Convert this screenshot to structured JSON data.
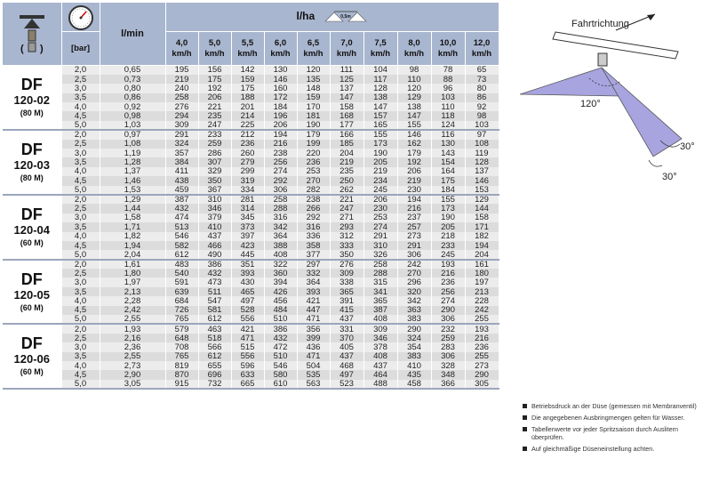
{
  "header": {
    "pressure_unit": "[bar]",
    "flow_unit": "l/min",
    "rate_unit": "l/ha",
    "spacing_label": "0,5m",
    "speed_unit": "km/h",
    "speeds": [
      "4,0",
      "5,0",
      "5,5",
      "6,0",
      "6,5",
      "7,0",
      "7,5",
      "8,0",
      "10,0",
      "12,0"
    ],
    "nozzle_icon": "nozzle-icon",
    "gauge_icon": "pressure-gauge-icon"
  },
  "groups": [
    {
      "name": "DF",
      "size": "120-02",
      "note": "(80 M)",
      "rows": [
        [
          "2,0",
          "0,65",
          "195",
          "156",
          "142",
          "130",
          "120",
          "111",
          "104",
          "98",
          "78",
          "65"
        ],
        [
          "2,5",
          "0,73",
          "219",
          "175",
          "159",
          "146",
          "135",
          "125",
          "117",
          "110",
          "88",
          "73"
        ],
        [
          "3,0",
          "0,80",
          "240",
          "192",
          "175",
          "160",
          "148",
          "137",
          "128",
          "120",
          "96",
          "80"
        ],
        [
          "3,5",
          "0,86",
          "258",
          "206",
          "188",
          "172",
          "159",
          "147",
          "138",
          "129",
          "103",
          "86"
        ],
        [
          "4,0",
          "0,92",
          "276",
          "221",
          "201",
          "184",
          "170",
          "158",
          "147",
          "138",
          "110",
          "92"
        ],
        [
          "4,5",
          "0,98",
          "294",
          "235",
          "214",
          "196",
          "181",
          "168",
          "157",
          "147",
          "118",
          "98"
        ],
        [
          "5,0",
          "1,03",
          "309",
          "247",
          "225",
          "206",
          "190",
          "177",
          "165",
          "155",
          "124",
          "103"
        ]
      ]
    },
    {
      "name": "DF",
      "size": "120-03",
      "note": "(80 M)",
      "rows": [
        [
          "2,0",
          "0,97",
          "291",
          "233",
          "212",
          "194",
          "179",
          "166",
          "155",
          "146",
          "116",
          "97"
        ],
        [
          "2,5",
          "1,08",
          "324",
          "259",
          "236",
          "216",
          "199",
          "185",
          "173",
          "162",
          "130",
          "108"
        ],
        [
          "3,0",
          "1,19",
          "357",
          "286",
          "260",
          "238",
          "220",
          "204",
          "190",
          "179",
          "143",
          "119"
        ],
        [
          "3,5",
          "1,28",
          "384",
          "307",
          "279",
          "256",
          "236",
          "219",
          "205",
          "192",
          "154",
          "128"
        ],
        [
          "4,0",
          "1,37",
          "411",
          "329",
          "299",
          "274",
          "253",
          "235",
          "219",
          "206",
          "164",
          "137"
        ],
        [
          "4,5",
          "1,46",
          "438",
          "350",
          "319",
          "292",
          "270",
          "250",
          "234",
          "219",
          "175",
          "146"
        ],
        [
          "5,0",
          "1,53",
          "459",
          "367",
          "334",
          "306",
          "282",
          "262",
          "245",
          "230",
          "184",
          "153"
        ]
      ]
    },
    {
      "name": "DF",
      "size": "120-04",
      "note": "(60 M)",
      "rows": [
        [
          "2,0",
          "1,29",
          "387",
          "310",
          "281",
          "258",
          "238",
          "221",
          "206",
          "194",
          "155",
          "129"
        ],
        [
          "2,5",
          "1,44",
          "432",
          "346",
          "314",
          "288",
          "266",
          "247",
          "230",
          "216",
          "173",
          "144"
        ],
        [
          "3,0",
          "1,58",
          "474",
          "379",
          "345",
          "316",
          "292",
          "271",
          "253",
          "237",
          "190",
          "158"
        ],
        [
          "3,5",
          "1,71",
          "513",
          "410",
          "373",
          "342",
          "316",
          "293",
          "274",
          "257",
          "205",
          "171"
        ],
        [
          "4,0",
          "1,82",
          "546",
          "437",
          "397",
          "364",
          "336",
          "312",
          "291",
          "273",
          "218",
          "182"
        ],
        [
          "4,5",
          "1,94",
          "582",
          "466",
          "423",
          "388",
          "358",
          "333",
          "310",
          "291",
          "233",
          "194"
        ],
        [
          "5,0",
          "2,04",
          "612",
          "490",
          "445",
          "408",
          "377",
          "350",
          "326",
          "306",
          "245",
          "204"
        ]
      ]
    },
    {
      "name": "DF",
      "size": "120-05",
      "note": "(60 M)",
      "rows": [
        [
          "2,0",
          "1,61",
          "483",
          "386",
          "351",
          "322",
          "297",
          "276",
          "258",
          "242",
          "193",
          "161"
        ],
        [
          "2,5",
          "1,80",
          "540",
          "432",
          "393",
          "360",
          "332",
          "309",
          "288",
          "270",
          "216",
          "180"
        ],
        [
          "3,0",
          "1,97",
          "591",
          "473",
          "430",
          "394",
          "364",
          "338",
          "315",
          "296",
          "236",
          "197"
        ],
        [
          "3,5",
          "2,13",
          "639",
          "511",
          "465",
          "426",
          "393",
          "365",
          "341",
          "320",
          "256",
          "213"
        ],
        [
          "4,0",
          "2,28",
          "684",
          "547",
          "497",
          "456",
          "421",
          "391",
          "365",
          "342",
          "274",
          "228"
        ],
        [
          "4,5",
          "2,42",
          "726",
          "581",
          "528",
          "484",
          "447",
          "415",
          "387",
          "363",
          "290",
          "242"
        ],
        [
          "5,0",
          "2,55",
          "765",
          "612",
          "556",
          "510",
          "471",
          "437",
          "408",
          "383",
          "306",
          "255"
        ]
      ]
    },
    {
      "name": "DF",
      "size": "120-06",
      "note": "(60 M)",
      "rows": [
        [
          "2,0",
          "1,93",
          "579",
          "463",
          "421",
          "386",
          "356",
          "331",
          "309",
          "290",
          "232",
          "193"
        ],
        [
          "2,5",
          "2,16",
          "648",
          "518",
          "471",
          "432",
          "399",
          "370",
          "346",
          "324",
          "259",
          "216"
        ],
        [
          "3,0",
          "2,36",
          "708",
          "566",
          "515",
          "472",
          "436",
          "405",
          "378",
          "354",
          "283",
          "236"
        ],
        [
          "3,5",
          "2,55",
          "765",
          "612",
          "556",
          "510",
          "471",
          "437",
          "408",
          "383",
          "306",
          "255"
        ],
        [
          "4,0",
          "2,73",
          "819",
          "655",
          "596",
          "546",
          "504",
          "468",
          "437",
          "410",
          "328",
          "273"
        ],
        [
          "4,5",
          "2,90",
          "870",
          "696",
          "633",
          "580",
          "535",
          "497",
          "464",
          "435",
          "348",
          "290"
        ],
        [
          "5,0",
          "3,05",
          "915",
          "732",
          "665",
          "610",
          "563",
          "523",
          "488",
          "458",
          "366",
          "305"
        ]
      ]
    }
  ],
  "diagram": {
    "direction_label": "Fahrtrichtung",
    "spray_angle": "120°",
    "tilt_front": "30°",
    "tilt_rear": "30°"
  },
  "notes": [
    "Betriebsdruck an der Düse (gemessen mit Membranventil)",
    "Die angegebenen Ausbringmengen gelten für Wasser.",
    "Tabellenwerte vor jeder Spritzsaison durch Auslitern überprüfen.",
    "Auf gleichmäßige Düseneinstellung achten."
  ],
  "colors": {
    "header_bg": "#a9b6cf",
    "row_light": "#ececec",
    "row_dark": "#dcdcdc",
    "spray_fill": "#a8a4e0"
  }
}
